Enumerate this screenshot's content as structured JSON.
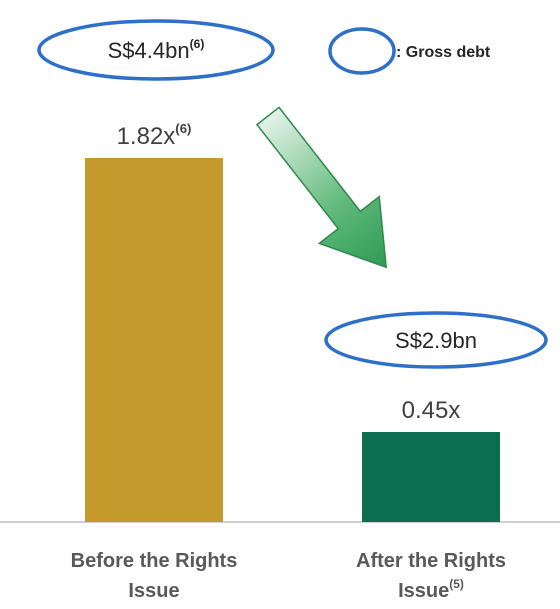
{
  "chart_data": {
    "type": "bar",
    "categories": [
      "Before the Rights Issue",
      "After the Rights Issue"
    ],
    "category_footnotes": [
      null,
      "(5)"
    ],
    "values": [
      1.82,
      0.45
    ],
    "value_labels": [
      "1.82x",
      "0.45x"
    ],
    "value_label_footnotes": [
      "(6)",
      null
    ],
    "colors": [
      "#c49a2c",
      "#0b6e4f"
    ],
    "annotations": [
      {
        "text": "S$4.4bn",
        "footnote": "(6)"
      },
      {
        "text": "S$2.9bn"
      }
    ],
    "legend": {
      "label": ": Gross debt",
      "color": "#2e6fc9"
    }
  }
}
